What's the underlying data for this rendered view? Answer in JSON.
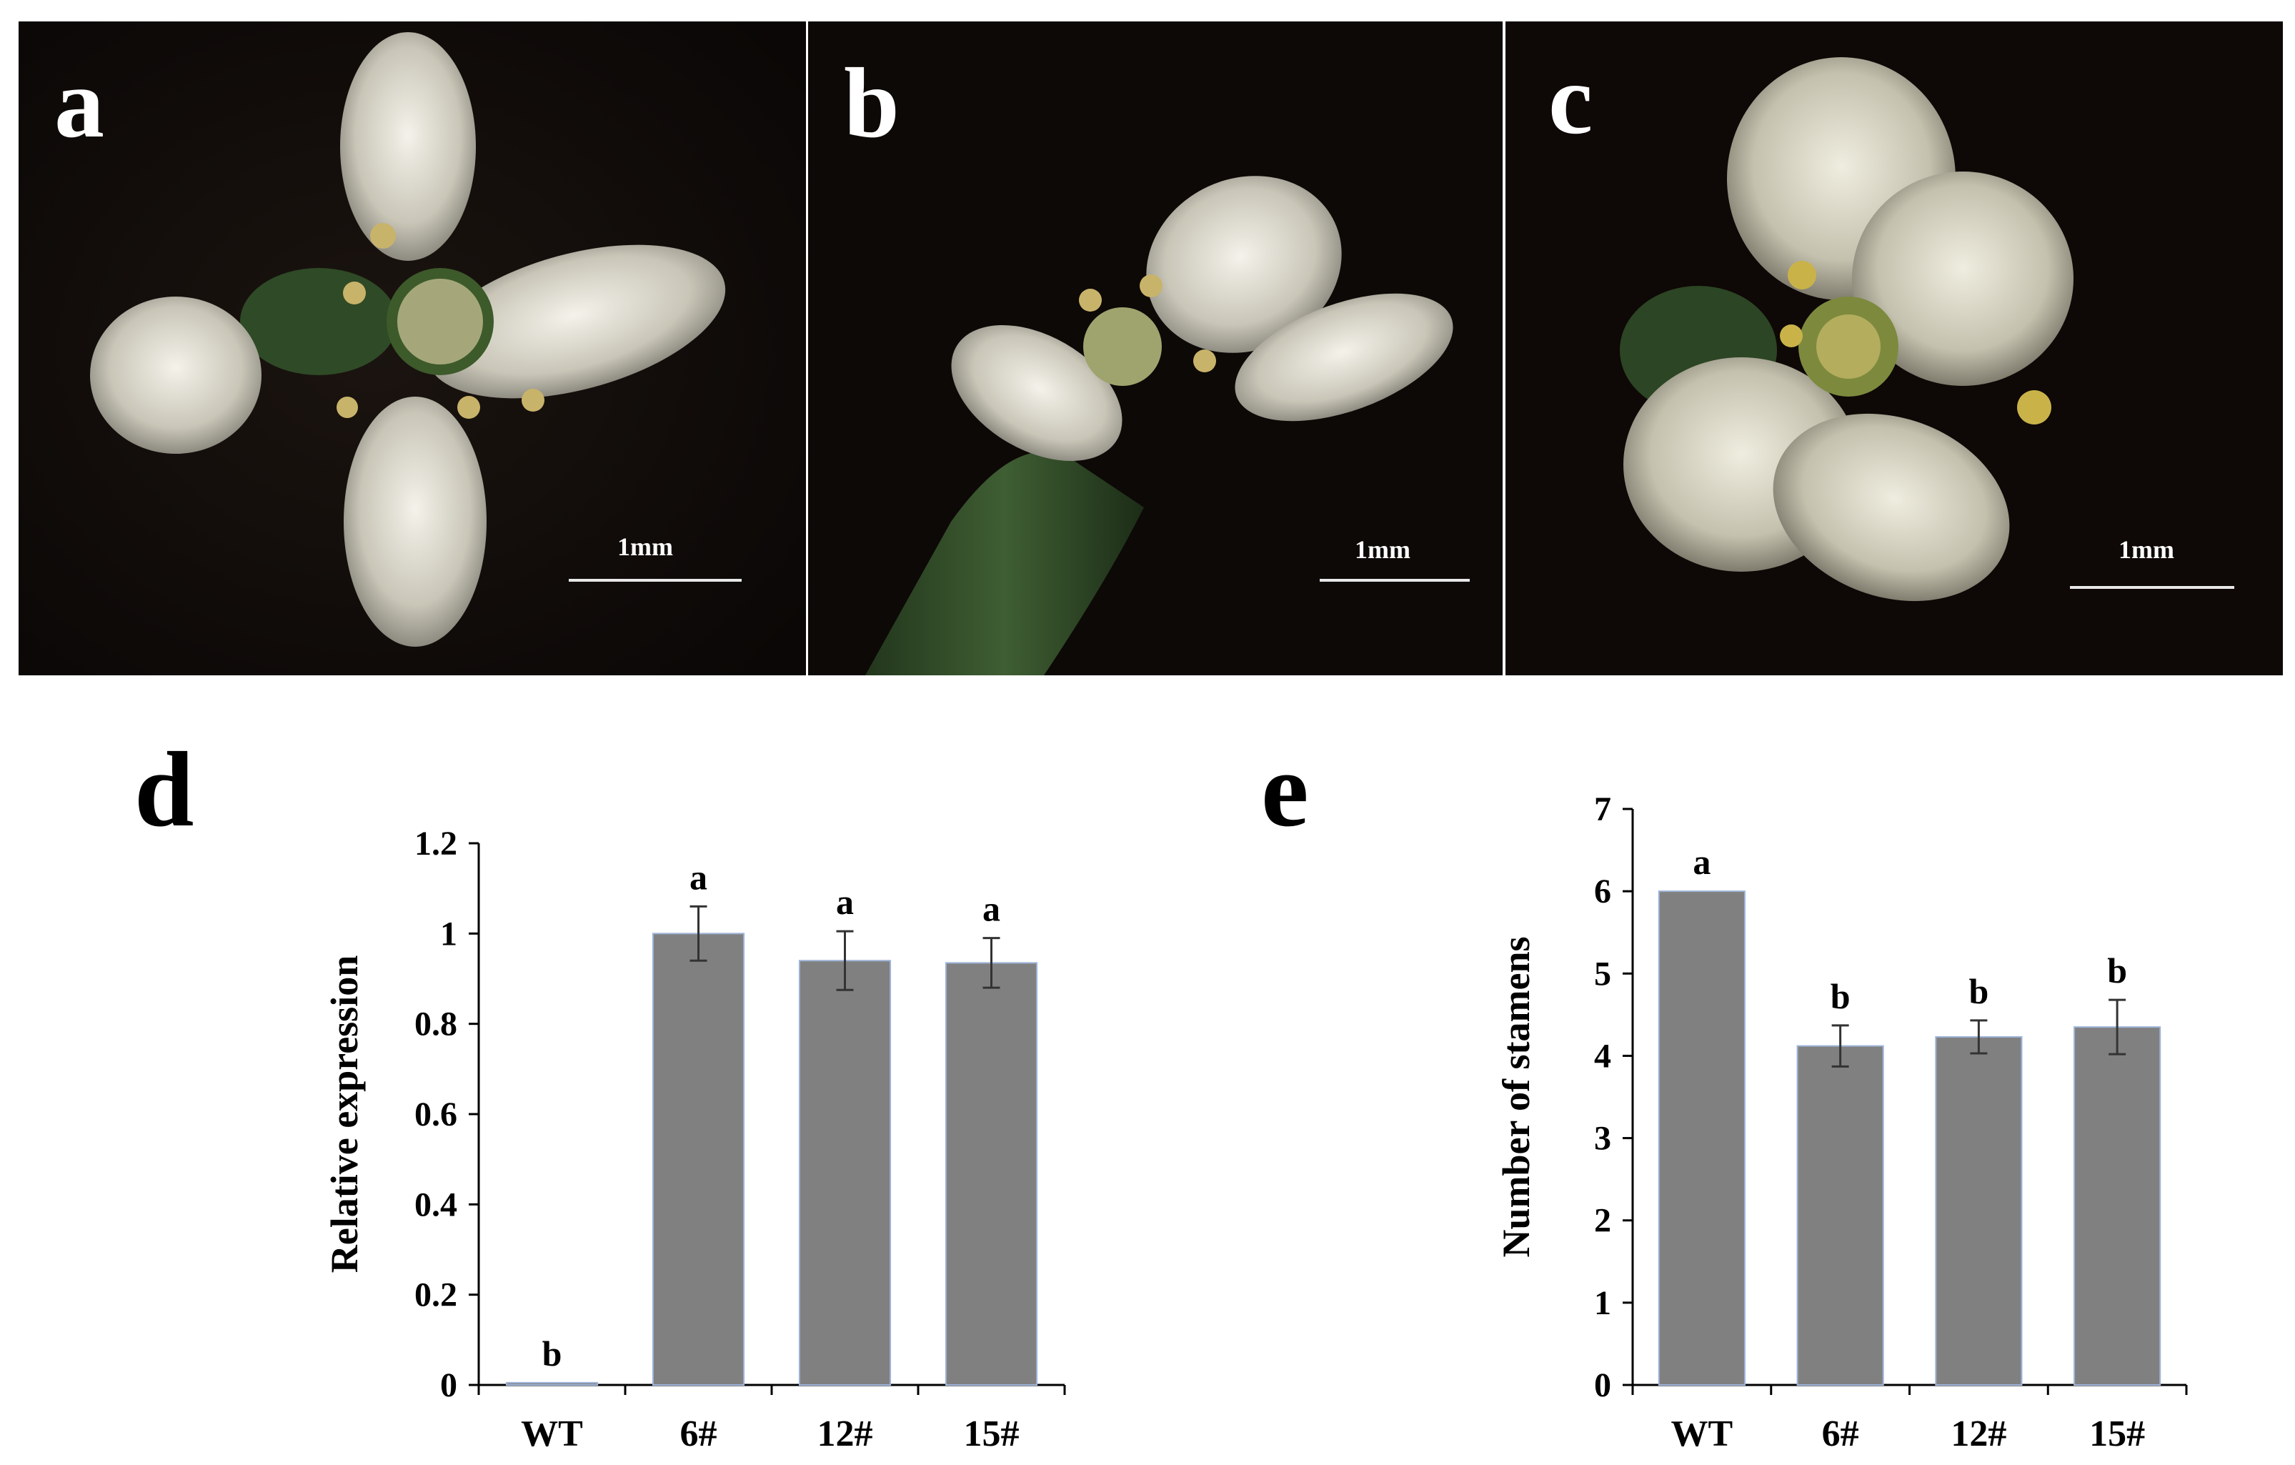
{
  "photos": [
    {
      "label": "a",
      "scale": "1mm"
    },
    {
      "label": "b",
      "scale": "1mm"
    },
    {
      "label": "c",
      "scale": "1mm"
    }
  ],
  "chart_data": [
    {
      "panel": "d",
      "type": "bar",
      "categories": [
        "WT",
        "6#",
        "12#",
        "15#"
      ],
      "values": [
        0.005,
        1.0,
        0.94,
        0.935
      ],
      "errors": [
        0.0,
        0.06,
        0.065,
        0.055
      ],
      "significance": [
        "b",
        "a",
        "a",
        "a"
      ],
      "ylabel": "Relative expression",
      "ylim": [
        0,
        1.2
      ],
      "yticks": [
        "0",
        "0.2",
        "0.4",
        "0.6",
        "0.8",
        "1",
        "1.2"
      ],
      "color": "#808080",
      "edge_color": "#9db3d8"
    },
    {
      "panel": "e",
      "type": "bar",
      "categories": [
        "WT",
        "6#",
        "12#",
        "15#"
      ],
      "values": [
        6.0,
        4.12,
        4.23,
        4.35
      ],
      "errors": [
        0.0,
        0.25,
        0.2,
        0.33
      ],
      "significance": [
        "a",
        "b",
        "b",
        "b"
      ],
      "ylabel": "Number of stamens",
      "ylim": [
        0,
        7
      ],
      "yticks": [
        "0",
        "1",
        "2",
        "3",
        "4",
        "5",
        "6",
        "7"
      ],
      "color": "#808080",
      "edge_color": "#9db3d8"
    }
  ]
}
